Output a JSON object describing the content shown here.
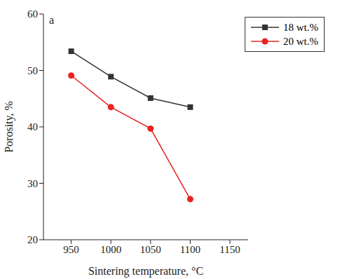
{
  "chart_data": {
    "type": "line",
    "annotations": [
      "a"
    ],
    "x_label": "Sintering temperature, °C",
    "y_label": "Porosity, %",
    "x": [
      950,
      1000,
      1050,
      1100
    ],
    "series": [
      {
        "name": "18 wt.%",
        "color": "#333333",
        "marker": "square",
        "values": [
          53.4,
          48.9,
          45.1,
          43.5
        ]
      },
      {
        "name": "20 wt.%",
        "color": "#e8221f",
        "marker": "circle",
        "values": [
          49.1,
          43.5,
          39.7,
          27.2
        ]
      }
    ],
    "xlim": [
      915,
      1173
    ],
    "xticks": [
      950,
      1000,
      1050,
      1100,
      1150
    ],
    "ylim": [
      20,
      60
    ],
    "yticks": [
      20,
      30,
      40,
      50,
      60
    ],
    "legend": "top-right",
    "grid": false
  }
}
